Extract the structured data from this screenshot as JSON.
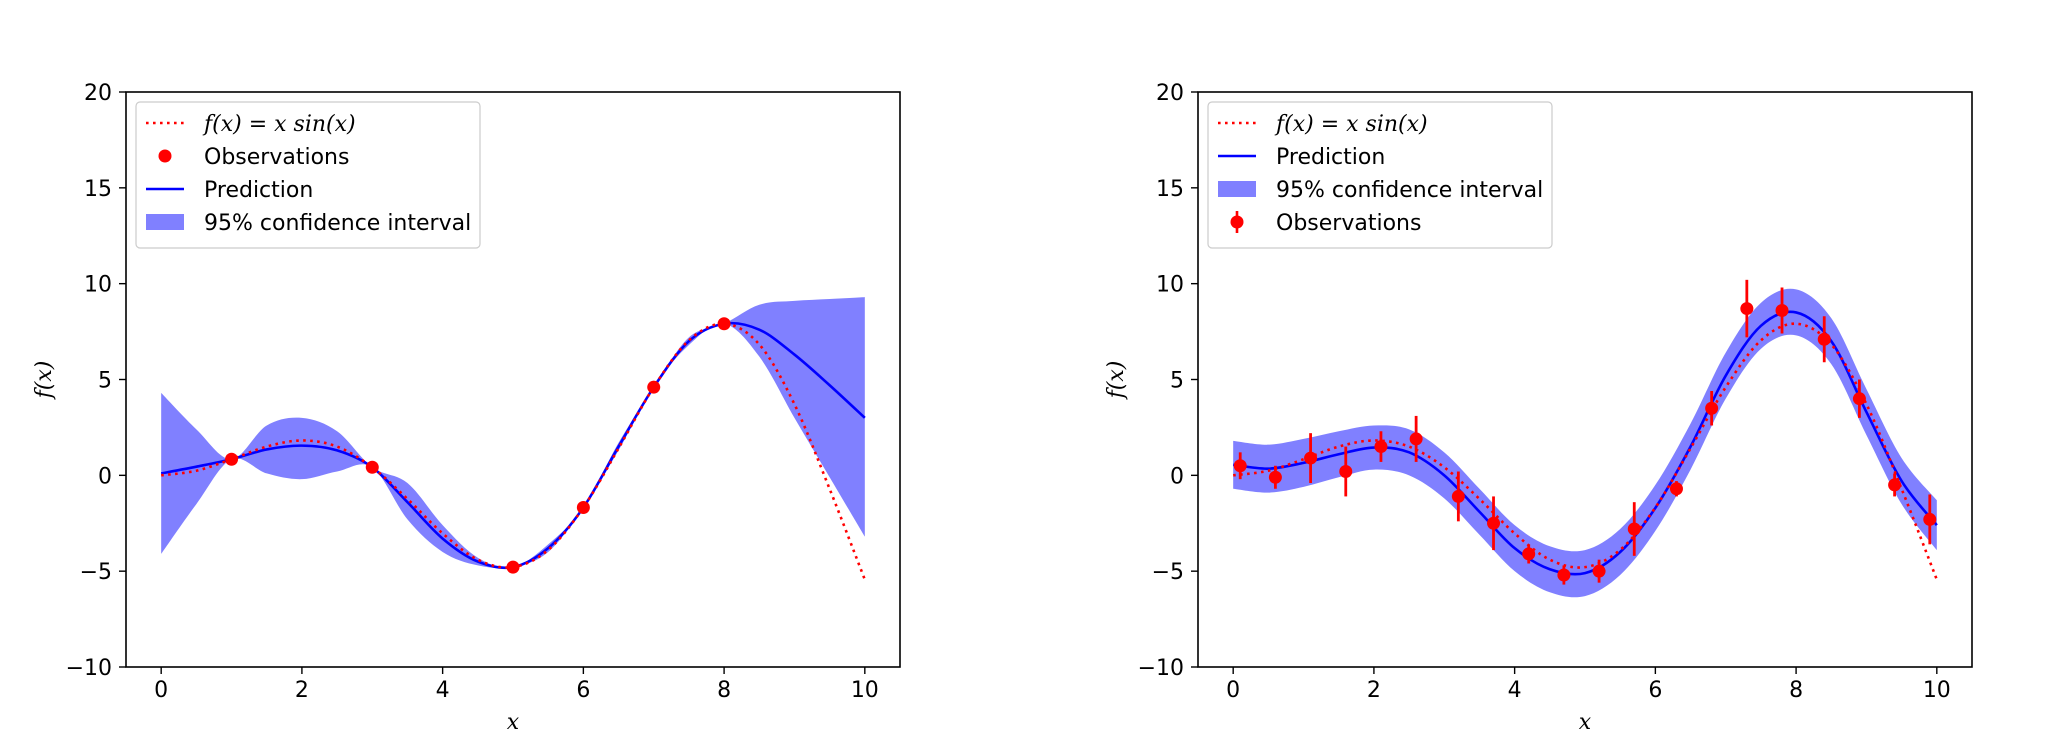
{
  "colors": {
    "truth": "#ff0000",
    "prediction": "#0000ff",
    "interval": "#8080ff",
    "observations": "#ff0000",
    "axes": "#000000"
  },
  "chart_data": [
    {
      "type": "line",
      "xlabel": "x",
      "ylabel": "f(x)",
      "xlim": [
        -0.5,
        10.5
      ],
      "ylim": [
        -10,
        20
      ],
      "xticks": [
        0,
        2,
        4,
        6,
        8,
        10
      ],
      "yticks": [
        -10,
        -5,
        0,
        5,
        10,
        15,
        20
      ],
      "xtick_labels": [
        "0",
        "2",
        "4",
        "6",
        "8",
        "10"
      ],
      "ytick_labels": [
        "−10",
        "−5",
        "0",
        "5",
        "10",
        "15",
        "20"
      ],
      "grid": false,
      "legend_placement": "upper-left",
      "legend": [
        {
          "key": "truth",
          "label": "f(x) = x sin(x)"
        },
        {
          "key": "observations",
          "label": "Observations"
        },
        {
          "key": "prediction",
          "label": "Prediction"
        },
        {
          "key": "interval",
          "label": "95% confidence interval"
        }
      ],
      "truth": {
        "x": [
          0,
          0.5,
          1,
          1.5,
          2,
          2.5,
          3,
          3.5,
          4,
          4.5,
          5,
          5.5,
          6,
          6.5,
          7,
          7.5,
          8,
          8.5,
          9,
          9.5,
          10
        ],
        "y": [
          0,
          0.24,
          0.84,
          1.5,
          1.82,
          1.5,
          0.42,
          -1.23,
          -3.03,
          -4.4,
          -4.79,
          -3.89,
          -1.68,
          1.41,
          4.6,
          7.04,
          7.91,
          6.83,
          3.71,
          -0.71,
          -5.44
        ]
      },
      "observations": {
        "x": [
          1,
          3,
          5,
          6,
          7,
          8
        ],
        "y": [
          0.84,
          0.42,
          -4.79,
          -1.68,
          4.6,
          7.91
        ]
      },
      "prediction": {
        "x": [
          0,
          0.5,
          1,
          1.5,
          2,
          2.5,
          3,
          3.5,
          4,
          4.5,
          5,
          5.5,
          6,
          6.5,
          7,
          7.5,
          8,
          8.5,
          9,
          9.5,
          10
        ],
        "y": [
          0.1,
          0.45,
          0.84,
          1.35,
          1.55,
          1.3,
          0.42,
          -1.4,
          -3.3,
          -4.5,
          -4.79,
          -3.8,
          -1.68,
          1.5,
          4.6,
          7.0,
          7.91,
          7.6,
          6.3,
          4.7,
          3.0
        ],
        "lower": [
          -4.1,
          -1.5,
          0.84,
          0.1,
          -0.2,
          0.2,
          0.42,
          -2.3,
          -4.0,
          -4.7,
          -4.79,
          -4.0,
          -1.68,
          1.3,
          4.6,
          6.8,
          7.91,
          6.2,
          3.0,
          -0.1,
          -3.2
        ],
        "upper": [
          4.3,
          2.4,
          0.84,
          2.6,
          3.0,
          2.3,
          0.42,
          -0.4,
          -2.6,
          -4.3,
          -4.79,
          -3.6,
          -1.68,
          1.7,
          4.6,
          7.2,
          7.91,
          8.9,
          9.1,
          9.2,
          9.3
        ]
      }
    },
    {
      "type": "line",
      "xlabel": "x",
      "ylabel": "f(x)",
      "xlim": [
        -0.5,
        10.5
      ],
      "ylim": [
        -10,
        20
      ],
      "xticks": [
        0,
        2,
        4,
        6,
        8,
        10
      ],
      "yticks": [
        -10,
        -5,
        0,
        5,
        10,
        15,
        20
      ],
      "xtick_labels": [
        "0",
        "2",
        "4",
        "6",
        "8",
        "10"
      ],
      "ytick_labels": [
        "−10",
        "−5",
        "0",
        "5",
        "10",
        "15",
        "20"
      ],
      "grid": false,
      "legend_placement": "upper-left",
      "legend": [
        {
          "key": "truth",
          "label": "f(x) = x sin(x)"
        },
        {
          "key": "prediction",
          "label": "Prediction"
        },
        {
          "key": "interval",
          "label": "95% confidence interval"
        },
        {
          "key": "observations",
          "label": "Observations"
        }
      ],
      "truth": {
        "x": [
          0,
          0.5,
          1,
          1.5,
          2,
          2.5,
          3,
          3.5,
          4,
          4.5,
          5,
          5.5,
          6,
          6.5,
          7,
          7.5,
          8,
          8.5,
          9,
          9.5,
          10
        ],
        "y": [
          0,
          0.24,
          0.84,
          1.5,
          1.82,
          1.5,
          0.42,
          -1.23,
          -3.03,
          -4.4,
          -4.79,
          -3.89,
          -1.68,
          1.41,
          4.6,
          7.04,
          7.91,
          6.83,
          3.71,
          -0.71,
          -5.44
        ]
      },
      "observations": {
        "x": [
          0.1,
          0.6,
          1.1,
          1.6,
          2.1,
          2.6,
          3.2,
          3.7,
          4.2,
          4.7,
          5.2,
          5.7,
          6.3,
          6.8,
          7.3,
          7.8,
          8.4,
          8.9,
          9.4,
          9.9
        ],
        "y": [
          0.5,
          -0.1,
          0.9,
          0.2,
          1.5,
          1.9,
          -1.1,
          -2.5,
          -4.1,
          -5.2,
          -5.0,
          -2.8,
          -0.7,
          3.5,
          8.7,
          8.6,
          7.1,
          4.0,
          -0.5,
          -2.3
        ],
        "err": [
          0.7,
          0.6,
          1.3,
          1.3,
          0.8,
          1.2,
          1.3,
          1.4,
          0.5,
          0.5,
          0.6,
          1.4,
          0.4,
          0.9,
          1.5,
          1.2,
          1.2,
          1.0,
          0.6,
          1.3
        ]
      },
      "prediction": {
        "x": [
          0,
          0.5,
          1,
          1.5,
          2,
          2.5,
          3,
          3.5,
          4,
          4.5,
          5,
          5.5,
          6,
          6.5,
          7,
          7.5,
          8,
          8.5,
          9,
          9.5,
          10
        ],
        "y": [
          0.55,
          0.35,
          0.65,
          1.1,
          1.45,
          1.2,
          0.0,
          -1.9,
          -3.8,
          -4.9,
          -5.1,
          -4.0,
          -1.7,
          1.5,
          5.2,
          7.8,
          8.5,
          7.0,
          3.3,
          -0.3,
          -2.6
        ],
        "lower": [
          -0.7,
          -0.9,
          -0.6,
          -0.1,
          0.3,
          0.0,
          -1.2,
          -3.1,
          -5.0,
          -6.1,
          -6.3,
          -5.2,
          -2.9,
          0.3,
          4.0,
          6.6,
          7.3,
          5.8,
          2.1,
          -1.5,
          -3.9
        ],
        "upper": [
          1.8,
          1.6,
          1.9,
          2.3,
          2.6,
          2.4,
          1.2,
          -0.7,
          -2.6,
          -3.7,
          -3.9,
          -2.8,
          -0.5,
          2.7,
          6.4,
          9.0,
          9.7,
          8.2,
          4.5,
          0.9,
          -1.3
        ]
      }
    }
  ]
}
